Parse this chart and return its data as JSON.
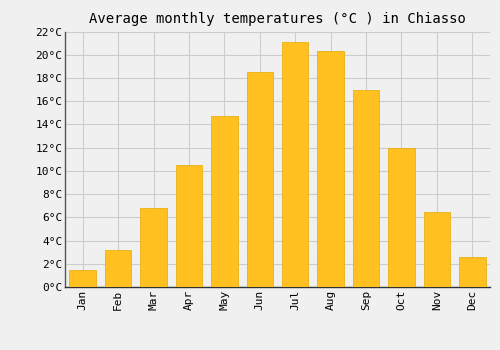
{
  "title": "Average monthly temperatures (°C ) in Chiasso",
  "months": [
    "Jan",
    "Feb",
    "Mar",
    "Apr",
    "May",
    "Jun",
    "Jul",
    "Aug",
    "Sep",
    "Oct",
    "Nov",
    "Dec"
  ],
  "values": [
    1.5,
    3.2,
    6.8,
    10.5,
    14.7,
    18.5,
    21.1,
    20.3,
    17.0,
    12.0,
    6.5,
    2.6
  ],
  "bar_color": "#FFC020",
  "bar_edge_color": "#E8A800",
  "ylim": [
    0,
    22
  ],
  "yticks": [
    0,
    2,
    4,
    6,
    8,
    10,
    12,
    14,
    16,
    18,
    20,
    22
  ],
  "grid_color": "#cccccc",
  "background_color": "#f0f0f0",
  "title_fontsize": 10,
  "tick_fontsize": 8,
  "bar_width": 0.75
}
